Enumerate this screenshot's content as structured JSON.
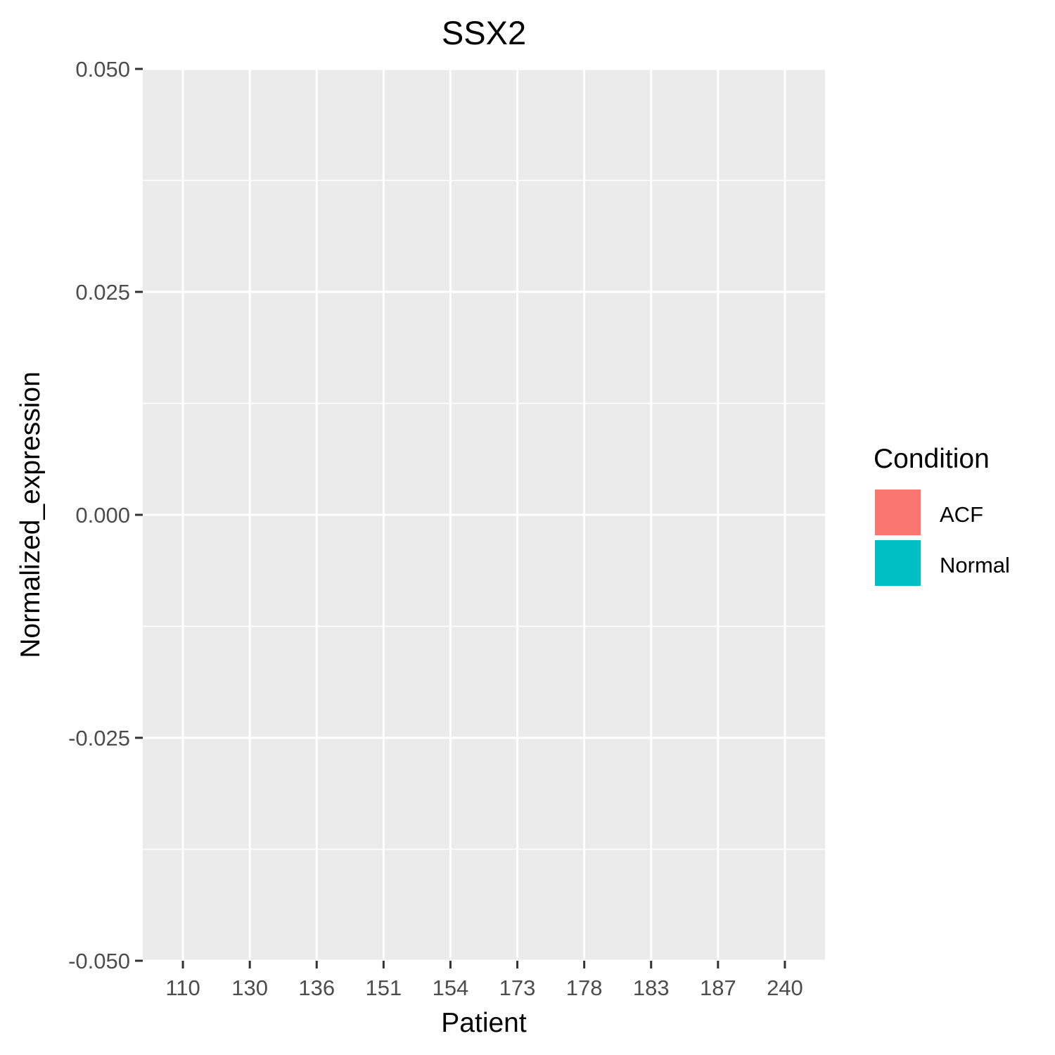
{
  "chart_data": {
    "type": "bar",
    "title": "SSX2",
    "xlabel": "Patient",
    "ylabel": "Normalized_expression",
    "categories": [
      "110",
      "130",
      "136",
      "151",
      "154",
      "173",
      "178",
      "183",
      "187",
      "240"
    ],
    "series": [
      {
        "name": "ACF",
        "color": "#F8766D",
        "values": [
          0,
          0,
          0,
          0,
          0,
          0,
          0,
          0,
          0,
          0
        ]
      },
      {
        "name": "Normal",
        "color": "#00BFC4",
        "values": [
          0,
          0,
          0,
          0,
          0,
          0,
          0,
          0,
          0,
          0
        ]
      }
    ],
    "ylim": [
      -0.05,
      0.05
    ],
    "yticks": [
      -0.05,
      -0.025,
      0,
      0.025,
      0.05
    ],
    "ytick_labels": [
      "-0.050",
      "-0.025",
      "0.000",
      "0.025",
      "0.050"
    ],
    "grid": true,
    "legend": {
      "title": "Condition",
      "position": "right"
    },
    "bar_outline": "dashed",
    "background": "#EBEBEB"
  }
}
